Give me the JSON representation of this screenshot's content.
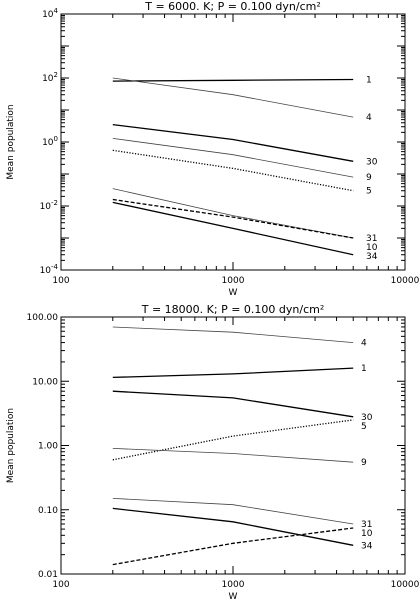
{
  "chart_data": [
    {
      "type": "line",
      "title": "T =  6000. K; P =  0.100 dyn/cm²",
      "xlabel": "W",
      "ylabel": "Mean population",
      "xscale": "log",
      "yscale": "log",
      "xlim": [
        100,
        10000
      ],
      "ylim": [
        0.0001,
        10000
      ],
      "xticks": [
        100,
        1000,
        10000
      ],
      "xtick_labels": [
        "100",
        "1000",
        "10000"
      ],
      "yticks": [
        0.0001,
        0.01,
        1,
        100,
        10000
      ],
      "ytick_labels": [
        "10⁻⁴",
        "10⁻²",
        "10⁰",
        "10²",
        "10⁴"
      ],
      "grid": false,
      "legend": "labels at right end of each series",
      "x": [
        200,
        1000,
        5000
      ],
      "series": [
        {
          "name": "1",
          "values": [
            80,
            85,
            90
          ],
          "style": "solid",
          "weight": "heavy"
        },
        {
          "name": "4",
          "values": [
            100,
            30,
            6
          ],
          "style": "solid",
          "weight": "light"
        },
        {
          "name": "30",
          "values": [
            3.5,
            1.2,
            0.25
          ],
          "style": "solid",
          "weight": "heavy"
        },
        {
          "name": "9",
          "values": [
            1.3,
            0.4,
            0.08
          ],
          "style": "solid",
          "weight": "light"
        },
        {
          "name": "5",
          "values": [
            0.55,
            0.15,
            0.03
          ],
          "style": "dotted",
          "weight": "heavy"
        },
        {
          "name": "31",
          "values": [
            0.035,
            0.005,
            0.001
          ],
          "style": "solid",
          "weight": "light"
        },
        {
          "name": "10",
          "values": [
            0.016,
            0.0045,
            0.001
          ],
          "style": "dashed",
          "weight": "heavy"
        },
        {
          "name": "34",
          "values": [
            0.013,
            0.002,
            0.0003
          ],
          "style": "solid",
          "weight": "heavy"
        }
      ]
    },
    {
      "type": "line",
      "title": "T = 18000. K; P =  0.100 dyn/cm²",
      "xlabel": "W",
      "ylabel": "Mean population",
      "xscale": "log",
      "yscale": "log",
      "xlim": [
        100,
        10000
      ],
      "ylim": [
        0.01,
        100
      ],
      "xticks": [
        100,
        1000,
        10000
      ],
      "xtick_labels": [
        "100",
        "1000",
        "10000"
      ],
      "yticks": [
        0.01,
        0.1,
        1,
        10,
        100
      ],
      "ytick_labels": [
        "0.01",
        "0.10",
        "1.00",
        "10.00",
        "100.00"
      ],
      "grid": false,
      "legend": "labels at right end of each series",
      "x": [
        200,
        1000,
        5000
      ],
      "series": [
        {
          "name": "4",
          "values": [
            70,
            58,
            40
          ],
          "style": "solid",
          "weight": "light"
        },
        {
          "name": "1",
          "values": [
            11.5,
            13,
            16
          ],
          "style": "solid",
          "weight": "heavy"
        },
        {
          "name": "30",
          "values": [
            7,
            5.5,
            2.8
          ],
          "style": "solid",
          "weight": "heavy"
        },
        {
          "name": "5",
          "values": [
            0.6,
            1.4,
            2.5
          ],
          "style": "dotted",
          "weight": "heavy"
        },
        {
          "name": "9",
          "values": [
            0.9,
            0.75,
            0.55
          ],
          "style": "solid",
          "weight": "light"
        },
        {
          "name": "31",
          "values": [
            0.15,
            0.12,
            0.06
          ],
          "style": "solid",
          "weight": "light"
        },
        {
          "name": "10",
          "values": [
            0.014,
            0.03,
            0.052
          ],
          "style": "dashed",
          "weight": "heavy"
        },
        {
          "name": "34",
          "values": [
            0.105,
            0.065,
            0.028
          ],
          "style": "solid",
          "weight": "heavy"
        }
      ]
    }
  ]
}
